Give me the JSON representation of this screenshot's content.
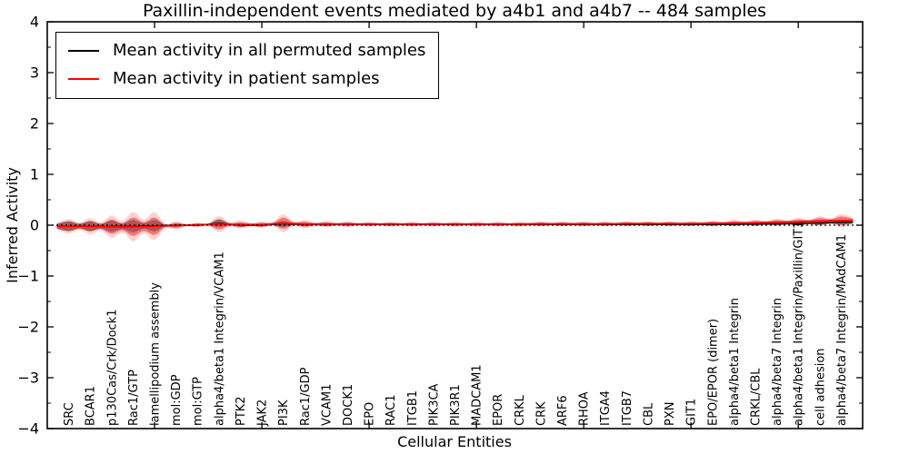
{
  "figure": {
    "title": "Paxillin-independent events mediated by a4b1 and a4b7 -- 484 samples",
    "xlabel": "Cellular Entities",
    "ylabel": "Inferred Activity"
  },
  "legend": {
    "items": [
      {
        "label": "Mean activity in all permuted samples",
        "color": "#000000"
      },
      {
        "label": "Mean activity in patient samples",
        "color": "#ff0000"
      }
    ]
  },
  "chart_data": {
    "type": "area",
    "subtype": "violin-band",
    "title": "Paxillin-independent events mediated by a4b1 and a4b7 -- 484 samples",
    "xlabel": "Cellular Entities",
    "ylabel": "Inferred Activity",
    "xlim": [
      0,
      38
    ],
    "ylim": [
      -4,
      4
    ],
    "yticks": [
      -4,
      -3,
      -2,
      -1,
      0,
      1,
      2,
      3,
      4
    ],
    "ytick_labels": [
      "−4",
      "−3",
      "−2",
      "−1",
      "0",
      "1",
      "2",
      "3",
      "4"
    ],
    "minor_ytick_step": 0.5,
    "xticks": [
      5,
      10,
      15,
      20,
      25,
      30,
      35
    ],
    "grid": false,
    "legend_position": "upper left",
    "zero_line": 0,
    "categories": [
      "SRC",
      "BCAR1",
      "p130Cas/Crk/Dock1",
      "Rac1/GTP",
      "lamellipodium assembly",
      "mol:GDP",
      "mol:GTP",
      "alpha4/beta1 Integrin/VCAM1",
      "PTK2",
      "JAK2",
      "PI3K",
      "Rac1/GDP",
      "VCAM1",
      "DOCK1",
      "EPO",
      "RAC1",
      "ITGB1",
      "PIK3CA",
      "PIK3R1",
      "MADCAM1",
      "EPOR",
      "CRKL",
      "CRK",
      "ARF6",
      "RHOA",
      "ITGA4",
      "ITGB7",
      "CBL",
      "PXN",
      "GIT1",
      "EPO/EPOR (dimer)",
      "alpha4/beta1 Integrin",
      "CRKL/CBL",
      "alpha4/beta7 Integrin",
      "alpha4/beta1 Integrin/Paxillin/GIT1",
      "cell adhesion",
      "alpha4/beta7 Integrin/MAdCAM1"
    ],
    "series": [
      {
        "name": "Mean activity in all permuted samples",
        "color": "#000000",
        "fill": "rgba(50,50,50,0.42)",
        "line_width": 1.3,
        "mean": [
          -0.02,
          -0.02,
          -0.02,
          -0.02,
          -0.01,
          0,
          0,
          0.035,
          0,
          0,
          0.025,
          0.01,
          0.01,
          0.01,
          0.01,
          0.01,
          0.01,
          0.01,
          0.01,
          0.01,
          0.01,
          0.01,
          0.01,
          0.01,
          0.01,
          0.01,
          0.01,
          0.01,
          0.01,
          0.01,
          0.015,
          0.015,
          0.02,
          0.025,
          0.03,
          0.04,
          0.055
        ],
        "halfwidth": [
          0.1,
          0.1,
          0.11,
          0.12,
          0.11,
          0.03,
          0.02,
          0.07,
          0.03,
          0.025,
          0.06,
          0.03,
          0.025,
          0.02,
          0.02,
          0.02,
          0.02,
          0.02,
          0.02,
          0.02,
          0.02,
          0.02,
          0.02,
          0.02,
          0.02,
          0.02,
          0.02,
          0.02,
          0.02,
          0.02,
          0.025,
          0.025,
          0.03,
          0.03,
          0.035,
          0.04,
          0.05
        ]
      },
      {
        "name": "Mean activity in patient samples",
        "color": "#ff0000",
        "fill": "rgba(255,0,0,0.45)",
        "halo_fill": "rgba(255,0,0,0.18)",
        "halo_scale": 1.6,
        "line_width": 1.8,
        "mean": [
          -0.02,
          -0.02,
          -0.03,
          -0.03,
          -0.02,
          -0.005,
          0.005,
          0.02,
          0.01,
          0.01,
          0.04,
          0.02,
          0.02,
          0.02,
          0.02,
          0.02,
          0.02,
          0.02,
          0.02,
          0.02,
          0.02,
          0.02,
          0.025,
          0.025,
          0.025,
          0.025,
          0.03,
          0.03,
          0.03,
          0.03,
          0.035,
          0.04,
          0.045,
          0.055,
          0.065,
          0.08,
          0.09
        ],
        "halfwidth": [
          0.09,
          0.1,
          0.14,
          0.18,
          0.17,
          0.05,
          0.03,
          0.1,
          0.05,
          0.04,
          0.11,
          0.05,
          0.04,
          0.035,
          0.03,
          0.03,
          0.03,
          0.03,
          0.03,
          0.03,
          0.03,
          0.03,
          0.03,
          0.03,
          0.03,
          0.03,
          0.03,
          0.03,
          0.03,
          0.03,
          0.035,
          0.04,
          0.04,
          0.045,
          0.05,
          0.06,
          0.08
        ]
      }
    ]
  }
}
